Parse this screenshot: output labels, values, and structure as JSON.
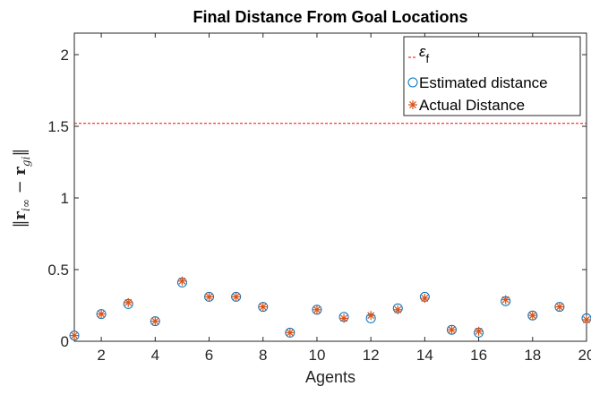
{
  "chart_data": {
    "type": "scatter",
    "title": "Final Distance From Goal Locations",
    "xlabel": "Agents",
    "ylabel": "||r_{i∞} − r_{gi}||",
    "xlim": [
      1,
      20
    ],
    "ylim": [
      0,
      2.15
    ],
    "xticks": [
      2,
      4,
      6,
      8,
      10,
      12,
      14,
      16,
      18,
      20
    ],
    "yticks": [
      0,
      0.5,
      1,
      1.5,
      2
    ],
    "ytick_labels": [
      "0",
      "0.5",
      "1",
      "1.5",
      "2"
    ],
    "grid": false,
    "legend_position": "top-right",
    "x": [
      1,
      2,
      3,
      4,
      5,
      6,
      7,
      8,
      9,
      10,
      11,
      12,
      13,
      14,
      15,
      16,
      17,
      18,
      19,
      20
    ],
    "series": [
      {
        "name": "Estimated distance",
        "marker": "circle",
        "color": "#0072BD",
        "values": [
          0.04,
          0.19,
          0.26,
          0.14,
          0.41,
          0.31,
          0.31,
          0.24,
          0.06,
          0.22,
          0.17,
          0.16,
          0.23,
          0.31,
          0.08,
          0.06,
          0.28,
          0.18,
          0.24,
          0.16
        ]
      },
      {
        "name": "Actual Distance",
        "marker": "asterisk",
        "color": "#D95319",
        "values": [
          0.04,
          0.19,
          0.27,
          0.14,
          0.42,
          0.31,
          0.31,
          0.24,
          0.06,
          0.22,
          0.16,
          0.18,
          0.22,
          0.3,
          0.08,
          0.07,
          0.29,
          0.18,
          0.24,
          0.15
        ]
      }
    ],
    "threshold": {
      "name": "ε_f",
      "value": 1.52,
      "style": "dashed",
      "color": "#FF0000"
    }
  }
}
